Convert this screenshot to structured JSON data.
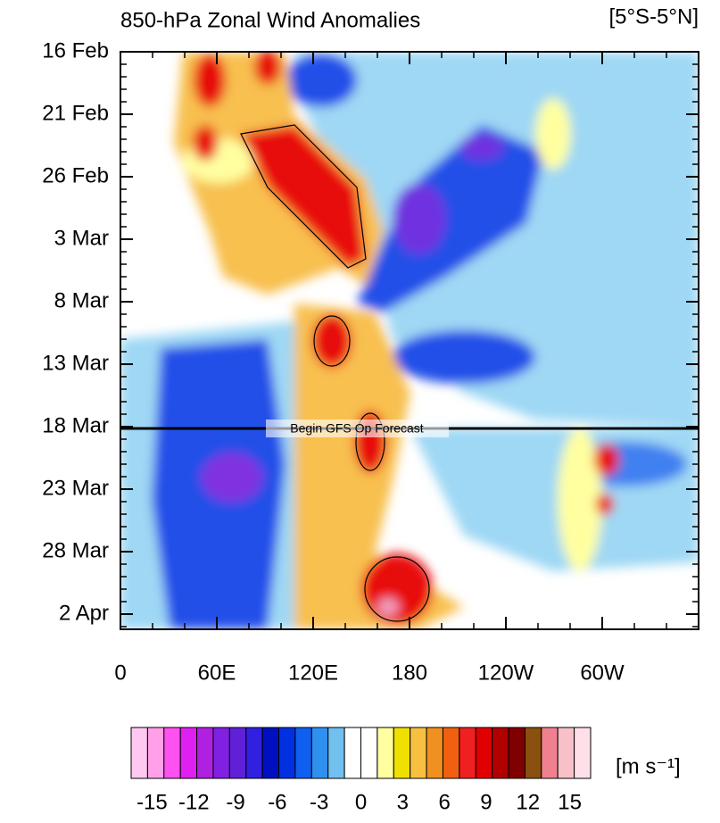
{
  "chart_data": {
    "type": "hovmoller",
    "title": "850-hPa Zonal Wind Anomalies",
    "subtitle": "[5°S-5°N]",
    "annotation": "Begin GFS Op Forecast",
    "y_categories": [
      "16 Feb",
      "21 Feb",
      "26 Feb",
      "3 Mar",
      "8 Mar",
      "13 Mar",
      "18 Mar",
      "23 Mar",
      "28 Mar",
      "2 Apr"
    ],
    "xlim": [
      0,
      360
    ],
    "xticks": [
      0,
      {
        "value": 60,
        "label": "60E"
      },
      {
        "value": 120,
        "label": "120E"
      },
      180,
      {
        "value": 240,
        "label": "120W"
      },
      {
        "value": 300,
        "label": "60W"
      }
    ],
    "colorbar": {
      "label": "[m s⁻¹]",
      "lim": [
        -16.5,
        16.5
      ],
      "ticks": [
        -15,
        -12,
        -9,
        -6,
        -3,
        0,
        3,
        6,
        9,
        12,
        15
      ],
      "colors": [
        "#ffc8f0",
        "#ffa0e8",
        "#ff50f0",
        "#e020f0",
        "#b020e0",
        "#8020e0",
        "#6020d8",
        "#3020e0",
        "#0010c0",
        "#0030e0",
        "#1060f0",
        "#3090f0",
        "#70c0f0",
        "#ffffff",
        "#ffffff",
        "#ffffa0",
        "#f0e000",
        "#f8c040",
        "#f09020",
        "#f06010",
        "#f02020",
        "#e00000",
        "#b00000",
        "#800000",
        "#8a5010",
        "#f08090",
        "#f8c0c8",
        "#ffe0e8"
      ]
    }
  }
}
